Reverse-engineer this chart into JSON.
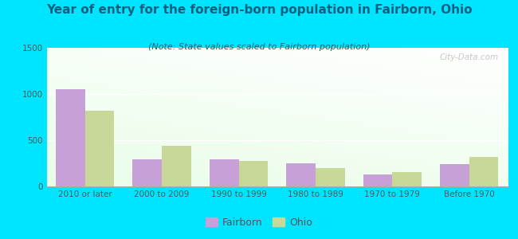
{
  "title": "Year of entry for the foreign-born population in Fairborn, Ohio",
  "subtitle": "(Note: State values scaled to Fairborn population)",
  "categories": [
    "2010 or later",
    "2000 to 2009",
    "1990 to 1999",
    "1980 to 1989",
    "1970 to 1979",
    "Before 1970"
  ],
  "fairborn_values": [
    1050,
    290,
    290,
    250,
    130,
    240
  ],
  "ohio_values": [
    820,
    440,
    280,
    200,
    155,
    315
  ],
  "fairborn_color": "#c8a0d8",
  "ohio_color": "#c8d898",
  "background_outer": "#00e5ff",
  "ylim": [
    0,
    1500
  ],
  "yticks": [
    0,
    500,
    1000,
    1500
  ],
  "bar_width": 0.38,
  "title_fontsize": 11,
  "subtitle_fontsize": 8,
  "tick_fontsize": 7.5,
  "legend_fontsize": 9,
  "title_color": "#006080",
  "subtitle_color": "#006080",
  "tick_color": "#555555",
  "watermark": "City-Data.com"
}
